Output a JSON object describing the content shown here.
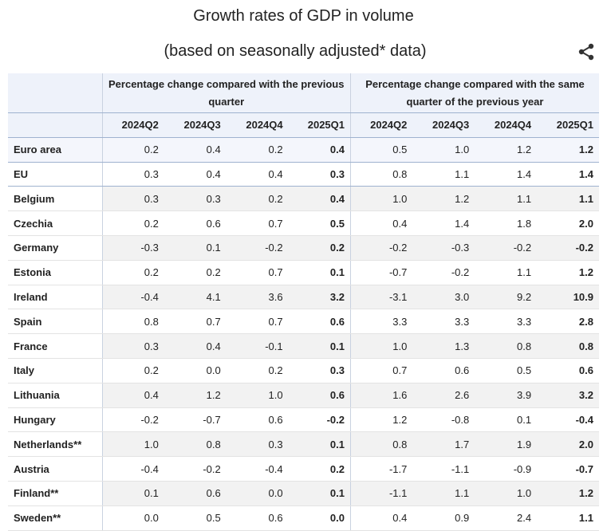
{
  "header": {
    "title": "Growth rates of GDP in volume",
    "subtitle": "(based on seasonally adjusted* data)"
  },
  "table": {
    "group_headers": [
      "Percentage change compared with the previous quarter",
      "Percentage change compared with the same quarter of the previous year"
    ],
    "columns": [
      "2024Q2",
      "2024Q3",
      "2024Q4",
      "2025Q1",
      "2024Q2",
      "2024Q3",
      "2024Q4",
      "2025Q1"
    ],
    "rows": [
      {
        "name": "Euro area",
        "values": [
          "0.2",
          "0.4",
          "0.2",
          "0.4",
          "0.5",
          "1.0",
          "1.2",
          "1.2"
        ]
      },
      {
        "name": "EU",
        "values": [
          "0.3",
          "0.4",
          "0.4",
          "0.3",
          "0.8",
          "1.1",
          "1.4",
          "1.4"
        ]
      },
      {
        "name": "Belgium",
        "values": [
          "0.3",
          "0.3",
          "0.2",
          "0.4",
          "1.0",
          "1.2",
          "1.1",
          "1.1"
        ]
      },
      {
        "name": "Czechia",
        "values": [
          "0.2",
          "0.6",
          "0.7",
          "0.5",
          "0.4",
          "1.4",
          "1.8",
          "2.0"
        ]
      },
      {
        "name": "Germany",
        "values": [
          "-0.3",
          "0.1",
          "-0.2",
          "0.2",
          "-0.2",
          "-0.3",
          "-0.2",
          "-0.2"
        ]
      },
      {
        "name": "Estonia",
        "values": [
          "0.2",
          "0.2",
          "0.7",
          "0.1",
          "-0.7",
          "-0.2",
          "1.1",
          "1.2"
        ]
      },
      {
        "name": "Ireland",
        "values": [
          "-0.4",
          "4.1",
          "3.6",
          "3.2",
          "-3.1",
          "3.0",
          "9.2",
          "10.9"
        ]
      },
      {
        "name": "Spain",
        "values": [
          "0.8",
          "0.7",
          "0.7",
          "0.6",
          "3.3",
          "3.3",
          "3.3",
          "2.8"
        ]
      },
      {
        "name": "France",
        "values": [
          "0.3",
          "0.4",
          "-0.1",
          "0.1",
          "1.0",
          "1.3",
          "0.8",
          "0.8"
        ]
      },
      {
        "name": "Italy",
        "values": [
          "0.2",
          "0.0",
          "0.2",
          "0.3",
          "0.7",
          "0.6",
          "0.5",
          "0.6"
        ]
      },
      {
        "name": "Lithuania",
        "values": [
          "0.4",
          "1.2",
          "1.0",
          "0.6",
          "1.6",
          "2.6",
          "3.9",
          "3.2"
        ]
      },
      {
        "name": "Hungary",
        "values": [
          "-0.2",
          "-0.7",
          "0.6",
          "-0.2",
          "1.2",
          "-0.8",
          "0.1",
          "-0.4"
        ]
      },
      {
        "name": "Netherlands**",
        "values": [
          "1.0",
          "0.8",
          "0.3",
          "0.1",
          "0.8",
          "1.7",
          "1.9",
          "2.0"
        ]
      },
      {
        "name": "Austria",
        "values": [
          "-0.4",
          "-0.2",
          "-0.4",
          "0.2",
          "-1.7",
          "-1.1",
          "-0.9",
          "-0.7"
        ]
      },
      {
        "name": "Finland**",
        "values": [
          "0.1",
          "0.6",
          "0.0",
          "0.1",
          "-1.1",
          "1.1",
          "1.0",
          "1.2"
        ]
      },
      {
        "name": "Sweden**",
        "values": [
          "0.0",
          "0.5",
          "0.6",
          "0.0",
          "0.4",
          "0.9",
          "2.4",
          "1.1"
        ]
      }
    ]
  }
}
